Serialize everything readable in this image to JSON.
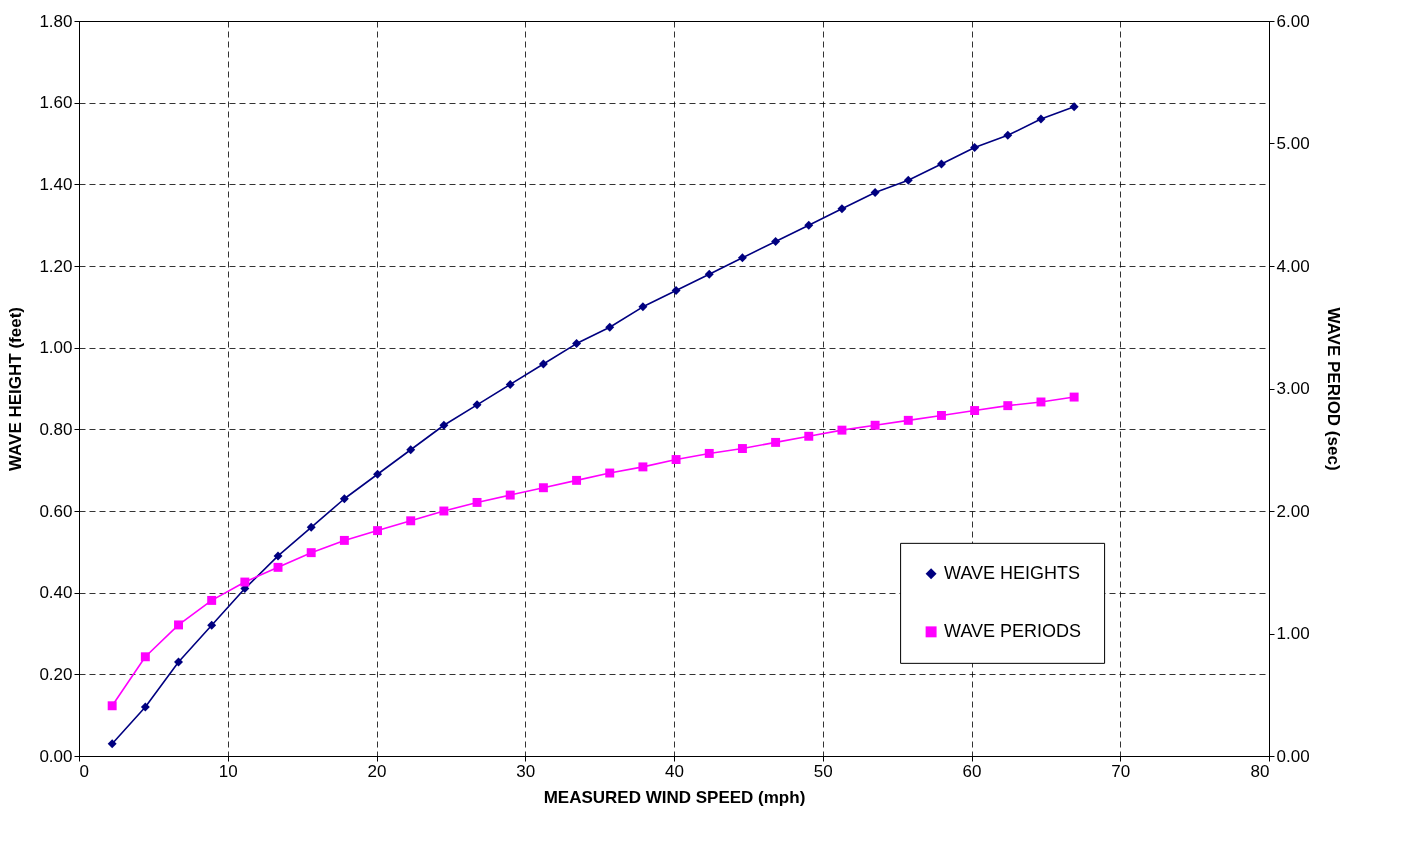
{
  "chart_data": {
    "type": "line",
    "xlabel": "MEASURED WIND SPEED (mph)",
    "ylabel": "WAVE HEIGHT (feet)",
    "y2label": "WAVE PERIOD (sec)",
    "x": [
      2.23,
      4.46,
      6.69,
      8.92,
      11.15,
      13.38,
      15.61,
      17.84,
      20.07,
      22.3,
      24.53,
      26.76,
      28.99,
      31.22,
      33.45,
      35.68,
      37.91,
      40.14,
      42.37,
      44.6,
      46.83,
      49.06,
      51.29,
      53.52,
      55.75,
      57.98,
      60.21,
      62.44,
      64.67,
      66.9
    ],
    "series": [
      {
        "name": "WAVE HEIGHTS",
        "color": "#000080",
        "marker": "diamond",
        "values": [
          0.03,
          0.12,
          0.23,
          0.32,
          0.41,
          0.49,
          0.56,
          0.63,
          0.69,
          0.75,
          0.81,
          0.86,
          0.91,
          0.96,
          1.01,
          1.05,
          1.1,
          1.14,
          1.18,
          1.22,
          1.26,
          1.3,
          1.34,
          1.38,
          1.41,
          1.45,
          1.49,
          1.52,
          1.56,
          1.59
        ]
      },
      {
        "name": "WAVE PERIODS",
        "color": "#ff00ff",
        "marker": "square",
        "axis": "y2",
        "values": [
          0.41,
          0.81,
          1.07,
          1.27,
          1.42,
          1.54,
          1.66,
          1.76,
          1.84,
          1.92,
          2.0,
          2.07,
          2.13,
          2.19,
          2.25,
          2.31,
          2.36,
          2.42,
          2.47,
          2.51,
          2.56,
          2.61,
          2.66,
          2.7,
          2.74,
          2.78,
          2.82,
          2.86,
          2.89,
          2.93
        ]
      }
    ],
    "xlim": [
      0,
      80
    ],
    "xticks": [
      0,
      10,
      20,
      30,
      40,
      50,
      60,
      70,
      80
    ],
    "ylim": [
      0,
      1.8
    ],
    "yticks": [
      {
        "value": 0,
        "label": "0.00"
      },
      {
        "value": 0.2,
        "label": "0.20"
      },
      {
        "value": 0.4,
        "label": "0.40"
      },
      {
        "value": 0.6,
        "label": "0.60"
      },
      {
        "value": 0.8,
        "label": "0.80"
      },
      {
        "value": 1,
        "label": "1.00"
      },
      {
        "value": 1.2,
        "label": "1.20"
      },
      {
        "value": 1.4,
        "label": "1.40"
      },
      {
        "value": 1.6,
        "label": "1.60"
      },
      {
        "value": 1.8,
        "label": "1.80"
      }
    ],
    "y2lim": [
      0,
      6
    ],
    "y2ticks": [
      {
        "value": 0,
        "label": "0.00"
      },
      {
        "value": 1,
        "label": "1.00"
      },
      {
        "value": 2,
        "label": "2.00"
      },
      {
        "value": 3,
        "label": "3.00"
      },
      {
        "value": 4,
        "label": "4.00"
      },
      {
        "value": 5,
        "label": "5.00"
      },
      {
        "value": 6,
        "label": "6.00"
      }
    ],
    "grid": true,
    "legend": "bottom right",
    "line_style": "solid"
  }
}
